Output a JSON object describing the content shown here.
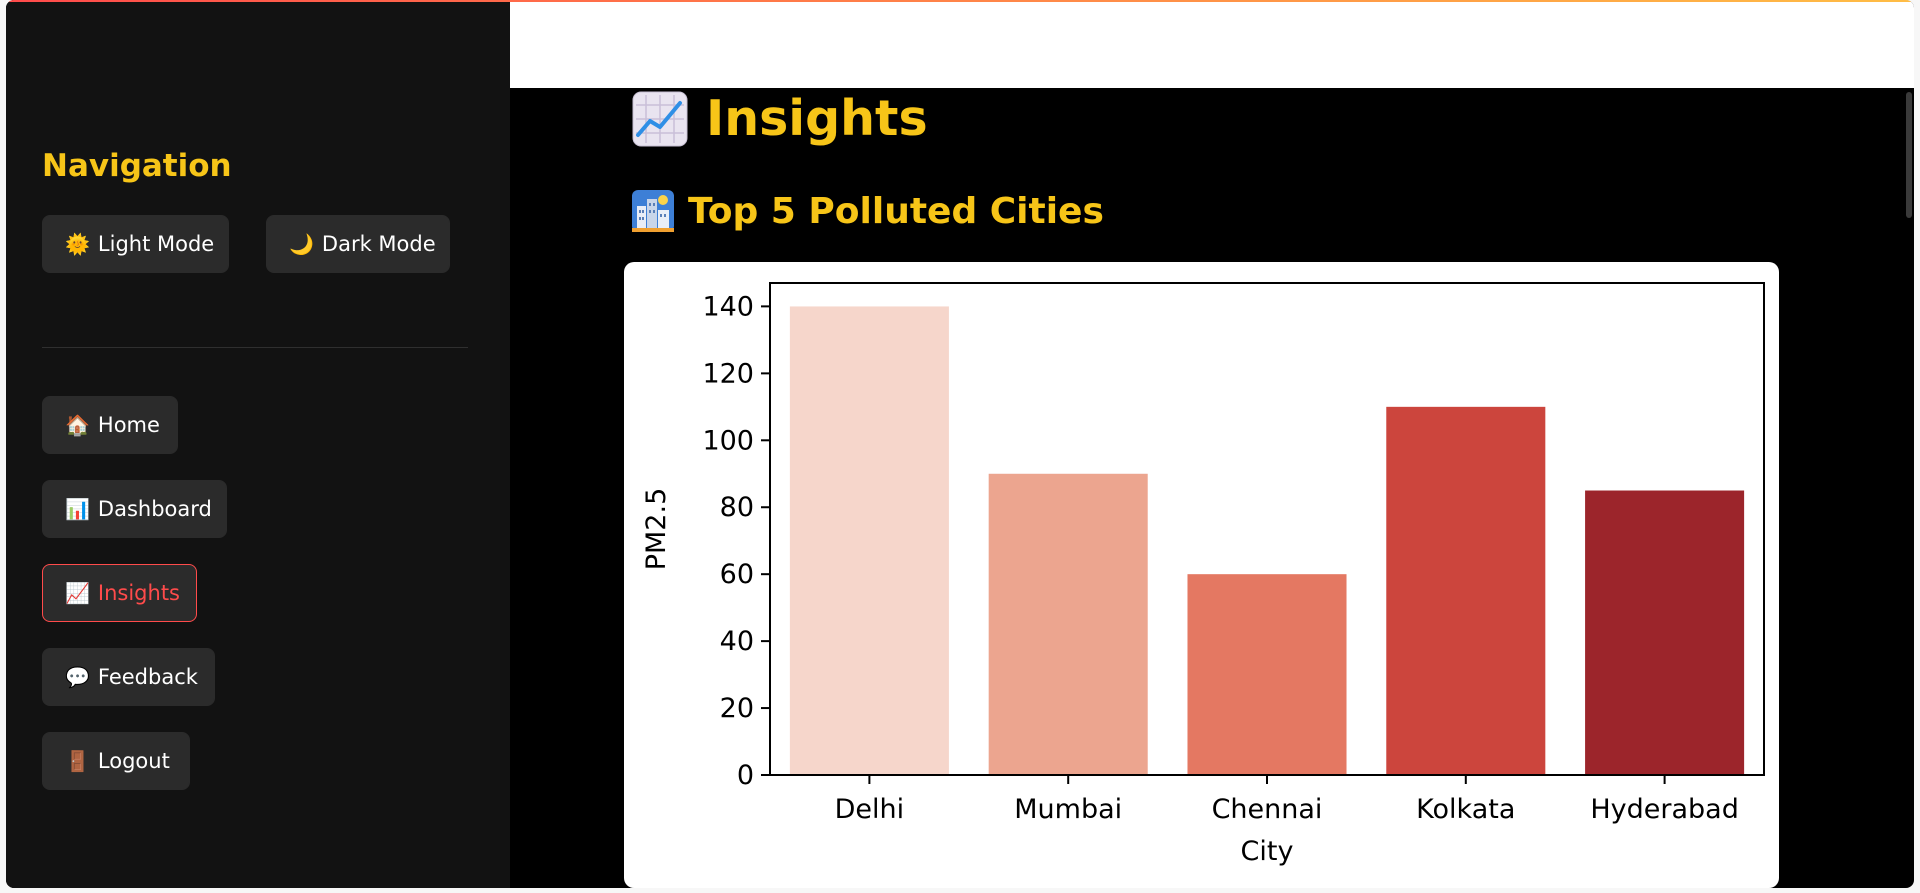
{
  "sidebar": {
    "title": "Navigation",
    "theme_buttons": [
      {
        "icon": "sun-face-icon",
        "glyph": "🌞",
        "label": "Light Mode"
      },
      {
        "icon": "crescent-moon-icon",
        "glyph": "🌙",
        "label": "Dark Mode"
      }
    ],
    "nav_items": [
      {
        "icon": "house-icon",
        "glyph": "🏠",
        "label": "Home",
        "active": false
      },
      {
        "icon": "bar-chart-icon",
        "glyph": "📊",
        "label": "Dashboard",
        "active": false
      },
      {
        "icon": "chart-increasing-icon",
        "glyph": "📈",
        "label": "Insights",
        "active": true
      },
      {
        "icon": "speech-bubble-icon",
        "glyph": "💬",
        "label": "Feedback",
        "active": false
      },
      {
        "icon": "door-icon",
        "glyph": "🚪",
        "label": "Logout",
        "active": false
      }
    ]
  },
  "main": {
    "page_title": "Insights",
    "page_title_icon": "chart-increasing-icon",
    "section_title": "Top 5 Polluted Cities",
    "section_icon": "cityscape-icon"
  },
  "colors": {
    "accent_yellow": "#f7c518",
    "active_red": "#ff4b4b",
    "sidebar_bg": "#121212",
    "main_bg": "#000000",
    "button_bg": "#2b2b2b"
  },
  "chart_data": {
    "type": "bar",
    "categories": [
      "Delhi",
      "Mumbai",
      "Chennai",
      "Kolkata",
      "Hyderabad"
    ],
    "values": [
      140,
      90,
      60,
      110,
      85
    ],
    "colors": [
      "#f6d6cb",
      "#eca58f",
      "#e47862",
      "#cc453d",
      "#9c252b"
    ],
    "title": "",
    "xlabel": "City",
    "ylabel": "PM2.5",
    "ylim": [
      0,
      147
    ],
    "yticks": [
      0,
      20,
      40,
      60,
      80,
      100,
      120,
      140
    ],
    "grid": false
  }
}
